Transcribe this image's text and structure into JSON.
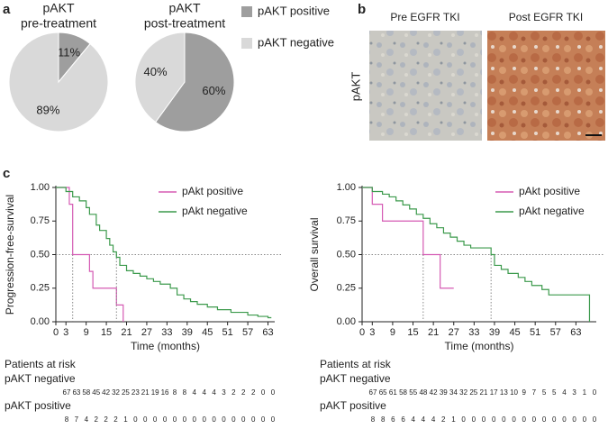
{
  "panel_labels": [
    "a",
    "b",
    "c"
  ],
  "images": {
    "title": "pAKT",
    "items": [
      {
        "label": "Pre EGFR TKI"
      },
      {
        "label": "Post EGFR TKI"
      }
    ]
  },
  "chart_data": [
    {
      "type": "pie",
      "title": [
        "pAKT",
        "pre-treatment"
      ],
      "categories": [
        "pAKT positive",
        "pAKT negative"
      ],
      "colors": [
        "#9e9e9e",
        "#d9d9d9"
      ],
      "values": [
        11,
        89
      ],
      "value_labels": [
        "11%",
        "89%"
      ]
    },
    {
      "type": "pie",
      "title": [
        "pAKT",
        "post-treatment"
      ],
      "colors": [
        "#9e9e9e",
        "#d9d9d9"
      ],
      "values": [
        60,
        40
      ],
      "value_labels": [
        "60%",
        "40%"
      ]
    },
    {
      "type": "km",
      "ylabel": "Progression-free-survival",
      "xlabel": "Time (months)",
      "xlim": [
        0,
        65
      ],
      "ylim": [
        0,
        1
      ],
      "xticks": [
        0,
        3,
        9,
        15,
        21,
        27,
        33,
        39,
        45,
        51,
        57,
        63
      ],
      "yticks": [
        {
          "value": 0,
          "label": "0.00"
        },
        {
          "value": 0.25,
          "label": "0.25"
        },
        {
          "value": 0.5,
          "label": "0.50"
        },
        {
          "value": 0.75,
          "label": "0.75"
        },
        {
          "value": 1,
          "label": "1.00"
        }
      ],
      "hline": 0.5,
      "series": [
        {
          "name": "pAkt positive",
          "color": "#d55bb4",
          "median": 5,
          "x": [
            0,
            4,
            4,
            5,
            5,
            10,
            10,
            11,
            11,
            18,
            18,
            20,
            20
          ],
          "values": [
            1,
            1,
            0.875,
            0.875,
            0.5,
            0.5,
            0.375,
            0.375,
            0.25,
            0.25,
            0.125,
            0.125,
            0
          ]
        },
        {
          "name": "pAkt negative",
          "color": "#3c9a4c",
          "median": 18,
          "x": [
            0,
            3,
            3,
            5,
            5,
            7,
            7,
            9,
            9,
            10,
            10,
            12,
            12,
            13,
            13,
            15,
            15,
            16,
            16,
            17,
            17,
            18,
            18,
            19,
            19,
            21,
            21,
            23,
            23,
            25,
            25,
            27,
            27,
            29,
            29,
            31,
            31,
            34,
            34,
            36,
            36,
            38,
            38,
            40,
            40,
            42,
            42,
            45,
            45,
            48,
            48,
            52,
            52,
            57,
            57,
            60,
            60,
            63,
            63,
            64
          ],
          "values": [
            1,
            1,
            0.97,
            0.97,
            0.93,
            0.93,
            0.9,
            0.9,
            0.85,
            0.85,
            0.8,
            0.8,
            0.72,
            0.72,
            0.68,
            0.68,
            0.62,
            0.62,
            0.57,
            0.57,
            0.52,
            0.52,
            0.48,
            0.48,
            0.42,
            0.42,
            0.38,
            0.38,
            0.36,
            0.36,
            0.34,
            0.34,
            0.32,
            0.32,
            0.3,
            0.3,
            0.28,
            0.28,
            0.25,
            0.25,
            0.2,
            0.2,
            0.17,
            0.17,
            0.15,
            0.15,
            0.13,
            0.13,
            0.11,
            0.11,
            0.09,
            0.09,
            0.07,
            0.07,
            0.05,
            0.05,
            0.04,
            0.04,
            0.03,
            0.03
          ]
        }
      ],
      "risk_table": {
        "title": "Patients at risk",
        "groups": [
          {
            "name": "pAKT negative",
            "counts": [
              67,
              63,
              58,
              45,
              42,
              32,
              25,
              23,
              21,
              19,
              16,
              8,
              8,
              4,
              4,
              4,
              3,
              2,
              2,
              2,
              0,
              0
            ]
          },
          {
            "name": "pAKT positive",
            "counts": [
              8,
              7,
              4,
              2,
              2,
              2,
              1,
              0,
              0,
              0,
              0,
              0,
              0,
              0,
              0,
              0,
              0,
              0,
              0,
              0,
              0,
              0
            ]
          }
        ]
      }
    },
    {
      "type": "km",
      "ylabel": "Overall survival",
      "xlabel": "Time (months)",
      "xlim": [
        0,
        69
      ],
      "ylim": [
        0,
        1
      ],
      "xticks": [
        0,
        3,
        9,
        15,
        21,
        27,
        33,
        39,
        45,
        51,
        57,
        63
      ],
      "yticks": [
        {
          "value": 0,
          "label": "0.00"
        },
        {
          "value": 0.25,
          "label": "0.25"
        },
        {
          "value": 0.5,
          "label": "0.50"
        },
        {
          "value": 0.75,
          "label": "0.75"
        },
        {
          "value": 1,
          "label": "1.00"
        }
      ],
      "hline": 0.5,
      "series": [
        {
          "name": "pAkt positive",
          "color": "#d55bb4",
          "median": 18,
          "x": [
            0,
            3,
            3,
            6,
            6,
            18,
            18,
            23,
            23,
            27
          ],
          "values": [
            1,
            1,
            0.875,
            0.875,
            0.75,
            0.75,
            0.5,
            0.5,
            0.25,
            0.25
          ]
        },
        {
          "name": "pAkt negative",
          "color": "#3c9a4c",
          "median": 38,
          "x": [
            0,
            3,
            3,
            6,
            6,
            8,
            8,
            10,
            10,
            12,
            12,
            14,
            14,
            16,
            16,
            18,
            18,
            20,
            20,
            22,
            22,
            24,
            24,
            26,
            26,
            28,
            28,
            30,
            30,
            32,
            32,
            38,
            38,
            39,
            39,
            41,
            41,
            43,
            43,
            46,
            46,
            48,
            48,
            50,
            50,
            53,
            53,
            55,
            55,
            67,
            67
          ],
          "values": [
            1,
            1,
            0.97,
            0.97,
            0.95,
            0.95,
            0.93,
            0.93,
            0.9,
            0.9,
            0.87,
            0.87,
            0.84,
            0.84,
            0.8,
            0.8,
            0.77,
            0.77,
            0.73,
            0.73,
            0.7,
            0.7,
            0.66,
            0.66,
            0.63,
            0.63,
            0.6,
            0.6,
            0.57,
            0.57,
            0.55,
            0.55,
            0.5,
            0.5,
            0.42,
            0.42,
            0.39,
            0.39,
            0.36,
            0.36,
            0.33,
            0.33,
            0.3,
            0.3,
            0.27,
            0.27,
            0.24,
            0.24,
            0.2,
            0.2,
            0
          ]
        }
      ],
      "risk_table": {
        "title": "Patients at risk",
        "groups": [
          {
            "name": "pAKT negative",
            "counts": [
              67,
              65,
              61,
              58,
              55,
              48,
              42,
              39,
              34,
              32,
              25,
              21,
              17,
              13,
              10,
              9,
              7,
              5,
              5,
              4,
              3,
              1,
              0
            ]
          },
          {
            "name": "pAKT positive",
            "counts": [
              8,
              8,
              6,
              6,
              4,
              4,
              4,
              2,
              1,
              0,
              0,
              0,
              0,
              0,
              0,
              0,
              0,
              0,
              0,
              0,
              0,
              0,
              0
            ]
          }
        ]
      }
    }
  ]
}
